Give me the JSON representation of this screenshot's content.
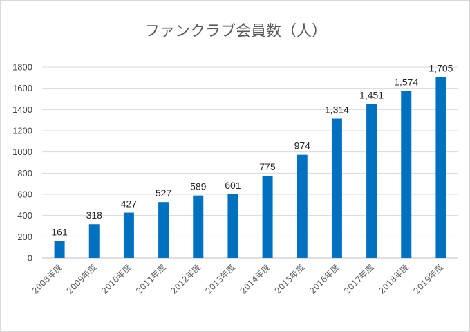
{
  "chart_data": {
    "type": "bar",
    "title": "ファンクラブ会員数（人）",
    "xlabel": "",
    "ylabel": "",
    "categories": [
      "2008年度",
      "2009年度",
      "2010年度",
      "2011年度",
      "2012年度",
      "2013年度",
      "2014年度",
      "2015年度",
      "2016年度",
      "2017年度",
      "2018年度",
      "2019年度"
    ],
    "values": [
      161,
      318,
      427,
      527,
      589,
      601,
      775,
      974,
      1314,
      1451,
      1574,
      1705
    ],
    "data_labels": [
      "161",
      "318",
      "427",
      "527",
      "589",
      "601",
      "775",
      "974",
      "1,314",
      "1,451",
      "1,574",
      "1,705"
    ],
    "ylim": [
      0,
      1800
    ],
    "yticks": [
      0,
      200,
      400,
      600,
      800,
      1000,
      1200,
      1400,
      1600,
      1800
    ],
    "grid": true,
    "legend": "none",
    "bar_color": "#0070C0"
  }
}
